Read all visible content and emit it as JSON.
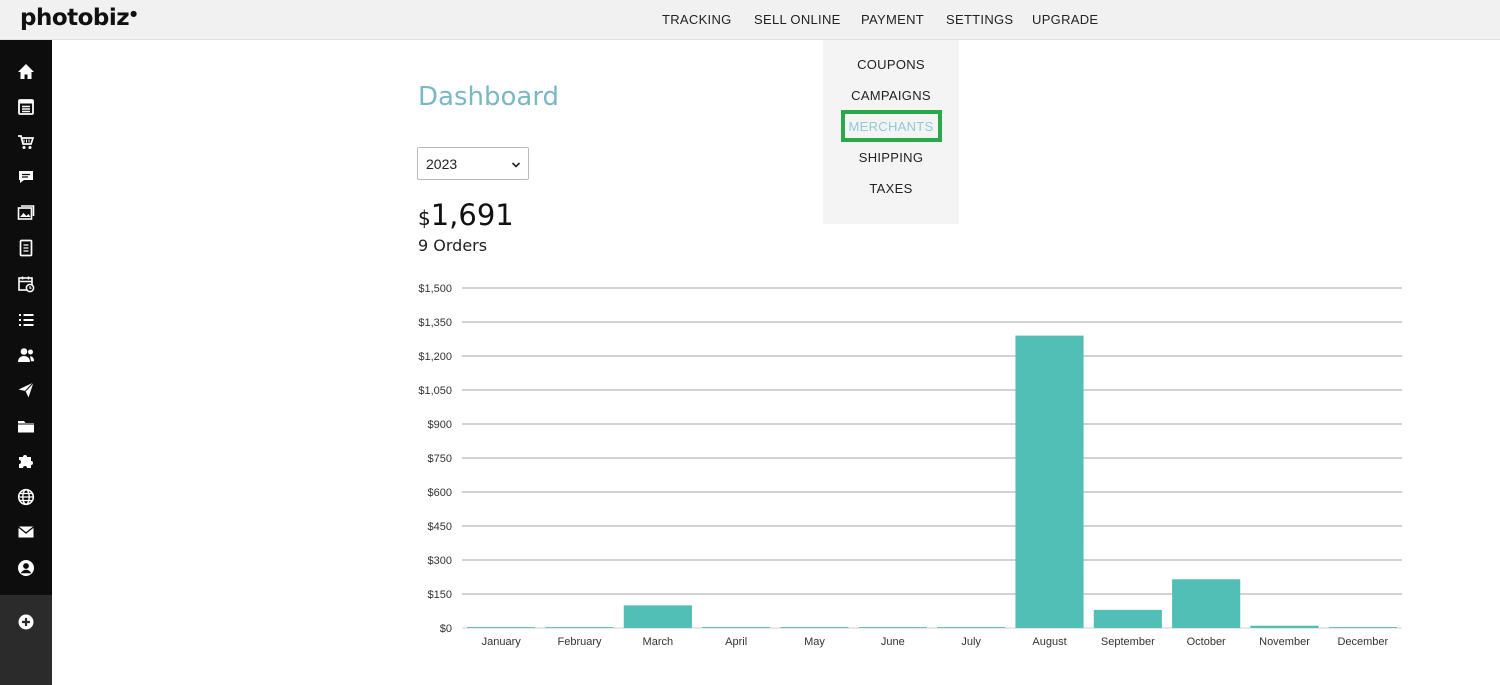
{
  "app": {
    "logo": "photobiz"
  },
  "topnav": [
    {
      "label": "TRACKING",
      "active": true
    },
    {
      "label": "SELL ONLINE",
      "active": false
    },
    {
      "label": "PAYMENT",
      "active": true
    },
    {
      "label": "SETTINGS",
      "active": false
    },
    {
      "label": "UPGRADE",
      "active": false
    }
  ],
  "payment_menu": [
    {
      "label": "COUPONS"
    },
    {
      "label": "CAMPAIGNS"
    },
    {
      "label": "MERCHANTS",
      "highlighted": true
    },
    {
      "label": "SHIPPING"
    },
    {
      "label": "TAXES"
    }
  ],
  "sidebar": {
    "icons": [
      "home-icon",
      "calendar-list-icon",
      "cart-icon",
      "chat-icon",
      "gallery-icon",
      "document-icon",
      "schedule-icon",
      "list-icon",
      "users-icon",
      "send-icon",
      "folder-icon",
      "puzzle-icon",
      "globe-icon",
      "mail-icon",
      "account-icon"
    ],
    "bottom_icon": "add-icon"
  },
  "main": {
    "title": "Dashboard",
    "year": "2023",
    "total_currency": "$",
    "total_amount": "1,691",
    "orders": "9 Orders"
  },
  "colors": {
    "accent": "#7ab8c3",
    "bar": "#52bfb6",
    "highlight_box": "#2ba84a",
    "sidebar": "#0d0d0d"
  },
  "chart_data": {
    "type": "bar",
    "categories": [
      "January",
      "February",
      "March",
      "April",
      "May",
      "June",
      "July",
      "August",
      "September",
      "October",
      "November",
      "December"
    ],
    "values": [
      4,
      4,
      100,
      4,
      4,
      4,
      4,
      1290,
      80,
      215,
      10,
      4
    ],
    "ylim": [
      0,
      1500
    ],
    "yticks": [
      0,
      150,
      300,
      450,
      600,
      750,
      900,
      1050,
      1200,
      1350,
      1500
    ],
    "ytick_labels": [
      "$0",
      "$150",
      "$300",
      "$450",
      "$600",
      "$750",
      "$900",
      "$1,050",
      "$1,200",
      "$1,350",
      "$1,500"
    ],
    "grid": true
  }
}
